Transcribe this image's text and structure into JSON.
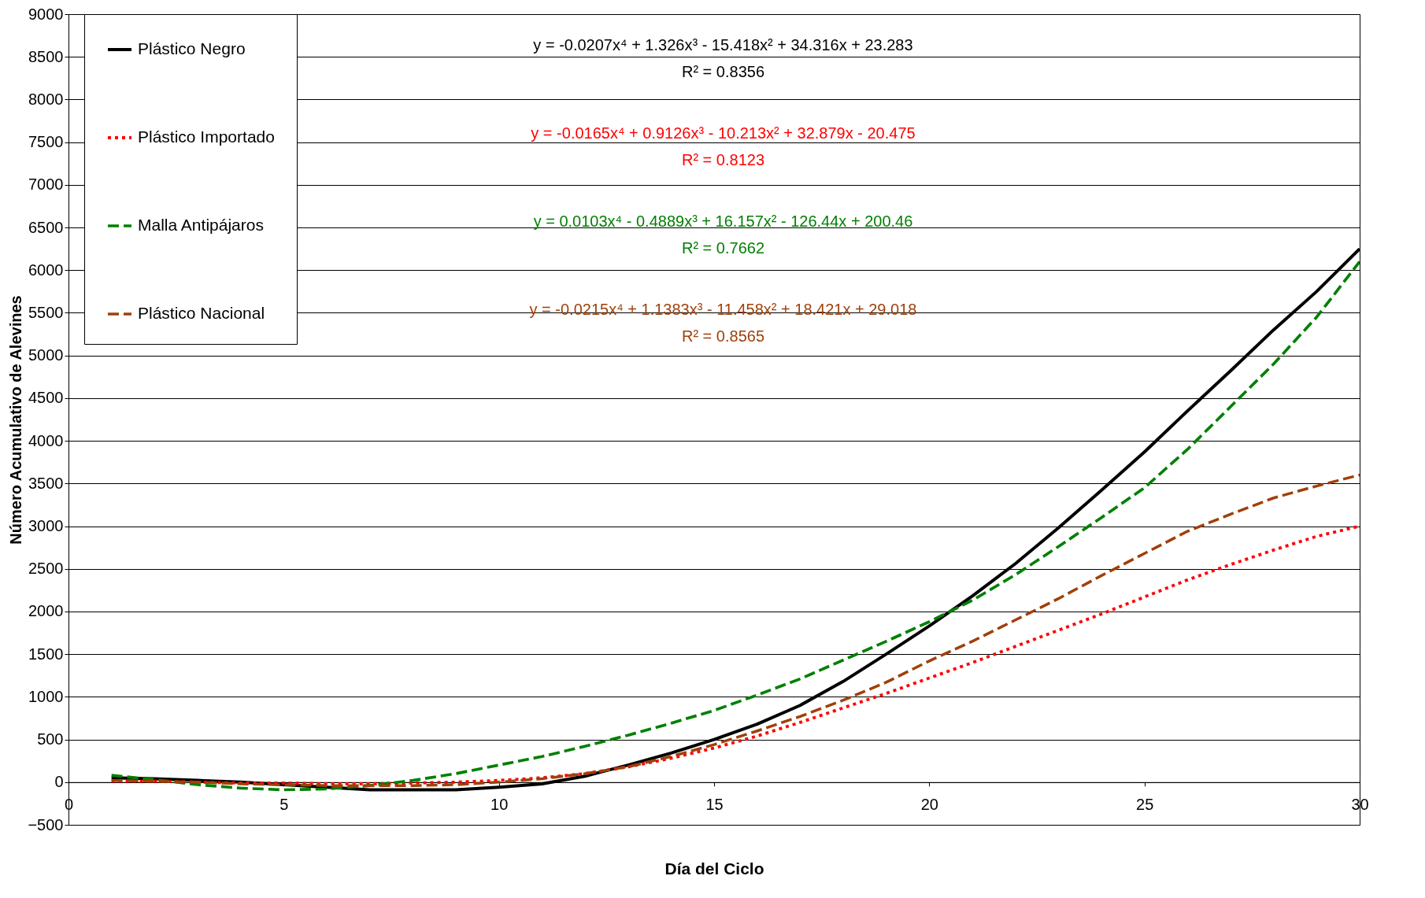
{
  "chart_data": {
    "type": "line",
    "xlabel": "Día del Ciclo",
    "ylabel": "Número Acumulativo de Alevines",
    "x": [
      1,
      2,
      3,
      4,
      5,
      6,
      7,
      8,
      9,
      10,
      11,
      12,
      13,
      14,
      15,
      16,
      17,
      18,
      19,
      20,
      21,
      22,
      23,
      24,
      25,
      26,
      27,
      28,
      29,
      30
    ],
    "series": [
      {
        "name": "Plástico Negro",
        "color": "#000000",
        "line_style": "solid",
        "values": [
          50,
          40,
          20,
          0,
          -30,
          -60,
          -90,
          -90,
          -90,
          -60,
          -20,
          70,
          200,
          340,
          500,
          680,
          900,
          1180,
          1500,
          1830,
          2180,
          2560,
          2980,
          3420,
          3870,
          4350,
          4820,
          5300,
          5750,
          6250
        ]
      },
      {
        "name": "Plástico Importado",
        "color": "#ff0000",
        "line_style": "dotted",
        "values": [
          10,
          10,
          0,
          -10,
          -10,
          -20,
          -20,
          -10,
          0,
          20,
          50,
          100,
          180,
          280,
          400,
          540,
          700,
          870,
          1040,
          1220,
          1400,
          1590,
          1780,
          1970,
          2170,
          2370,
          2550,
          2720,
          2880,
          3000
        ]
      },
      {
        "name": "Malla Antipájaros",
        "color": "#008000",
        "line_style": "dashed",
        "values": [
          80,
          30,
          -30,
          -70,
          -90,
          -80,
          -40,
          20,
          100,
          200,
          300,
          420,
          550,
          690,
          840,
          1020,
          1210,
          1430,
          1650,
          1880,
          2130,
          2430,
          2760,
          3100,
          3450,
          3900,
          4400,
          4900,
          5450,
          6100
        ]
      },
      {
        "name": "Plástico Nacional",
        "color": "#a0400a",
        "line_style": "dashed",
        "values": [
          20,
          10,
          0,
          -20,
          -30,
          -40,
          -40,
          -40,
          -30,
          0,
          40,
          100,
          180,
          300,
          440,
          600,
          770,
          960,
          1170,
          1420,
          1650,
          1900,
          2150,
          2420,
          2680,
          2940,
          3140,
          3330,
          3470,
          3600
        ]
      }
    ],
    "annotations": [
      "y = -0.0207x⁴ + 1.326x³ - 15.418x² + 34.316x + 23.283",
      "R² = 0.8356",
      "y = -0.0165x⁴ + 0.9126x³ - 10.213x² + 32.879x - 20.475",
      "R² = 0.8123",
      "y = 0.0103x⁴ - 0.4889x³ + 16.157x² - 126.44x + 200.46",
      "R² = 0.7662",
      "y = -0.0215x⁴ + 1.1383x³ - 11.458x² + 18.421x + 29.018",
      "R² = 0.8565"
    ],
    "xlim": [
      0,
      30
    ],
    "xticks": [
      0,
      5,
      10,
      15,
      20,
      25,
      30
    ],
    "ylim": [
      -500,
      9000
    ],
    "yticks": [
      -500,
      0,
      500,
      1000,
      1500,
      2000,
      2500,
      3000,
      3500,
      4000,
      4500,
      5000,
      5500,
      6000,
      6500,
      7000,
      7500,
      8000,
      8500,
      9000
    ],
    "grid": "y",
    "legend": "top left",
    "marker": "none"
  }
}
